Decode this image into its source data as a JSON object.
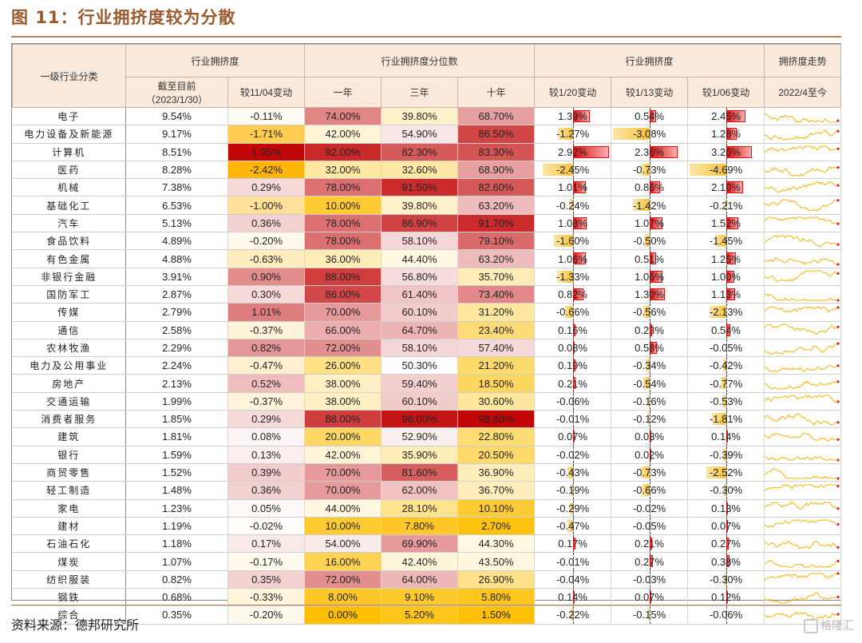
{
  "title": "图 11：行业拥挤度较为分散",
  "source": "资料来源：德邦研究所",
  "watermark": "格隆汇",
  "headers": {
    "col_category": "一级行业分类",
    "group_crowding": "行业拥挤度",
    "group_percentile": "行业拥挤度分位数",
    "group_change": "行业拥挤度",
    "group_trend": "拥挤度走势",
    "sub_asof": "截至目前",
    "sub_asof_date": "（2023/1/30）",
    "sub_vs1104": "较11/04变动",
    "sub_1y": "一年",
    "sub_3y": "三年",
    "sub_10y": "十年",
    "sub_vs120": "较1/20变动",
    "sub_vs113": "较1/13变动",
    "sub_vs106": "较1/06变动",
    "sub_trend": "2022/4至今"
  },
  "colors": {
    "title": "#9b5a2e",
    "header_bg": "#fbe9dc",
    "bar_pos": "#e21212",
    "bar_neg": "#f6c23a",
    "spark": "#f4b400",
    "spark_end": "#e02020"
  },
  "rows": [
    {
      "name": "电子",
      "cur": "9.54%",
      "v1104": "-0.11%",
      "y1": "74.00%",
      "y3": "39.80%",
      "y10": "68.70%",
      "c120": "1.39%",
      "c113": "0.54%",
      "c106": "2.45%"
    },
    {
      "name": "电力设备及新能源",
      "cur": "9.17%",
      "v1104": "-1.71%",
      "y1": "42.00%",
      "y3": "54.90%",
      "y10": "86.50%",
      "c120": "-1.27%",
      "c113": "-3.08%",
      "c106": "1.28%"
    },
    {
      "name": "计算机",
      "cur": "8.51%",
      "v1104": "1.95%",
      "y1": "92.00%",
      "y3": "82.30%",
      "y10": "83.30%",
      "c120": "2.92%",
      "c113": "2.36%",
      "c106": "3.26%"
    },
    {
      "name": "医药",
      "cur": "8.28%",
      "v1104": "-2.42%",
      "y1": "32.00%",
      "y3": "32.60%",
      "y10": "68.90%",
      "c120": "-2.45%",
      "c113": "-0.73%",
      "c106": "-4.69%"
    },
    {
      "name": "机械",
      "cur": "7.38%",
      "v1104": "0.29%",
      "y1": "78.00%",
      "y3": "91.50%",
      "y10": "82.60%",
      "c120": "1.01%",
      "c113": "0.86%",
      "c106": "2.10%"
    },
    {
      "name": "基础化工",
      "cur": "6.53%",
      "v1104": "-1.00%",
      "y1": "10.00%",
      "y3": "39.80%",
      "y10": "63.20%",
      "c120": "-0.24%",
      "c113": "-1.42%",
      "c106": "-0.21%"
    },
    {
      "name": "汽车",
      "cur": "5.13%",
      "v1104": "0.36%",
      "y1": "78.00%",
      "y3": "86.90%",
      "y10": "91.70%",
      "c120": "1.08%",
      "c113": "1.07%",
      "c106": "1.52%"
    },
    {
      "name": "食品饮料",
      "cur": "4.89%",
      "v1104": "-0.20%",
      "y1": "78.00%",
      "y3": "58.10%",
      "y10": "79.10%",
      "c120": "-1.60%",
      "c113": "-0.50%",
      "c106": "-1.45%"
    },
    {
      "name": "有色金属",
      "cur": "4.88%",
      "v1104": "-0.63%",
      "y1": "36.00%",
      "y3": "44.40%",
      "y10": "63.20%",
      "c120": "1.06%",
      "c113": "0.51%",
      "c106": "1.25%"
    },
    {
      "name": "非银行金融",
      "cur": "3.91%",
      "v1104": "0.90%",
      "y1": "88.00%",
      "y3": "56.80%",
      "y10": "35.70%",
      "c120": "-1.33%",
      "c113": "1.06%",
      "c106": "1.00%"
    },
    {
      "name": "国防军工",
      "cur": "2.87%",
      "v1104": "0.30%",
      "y1": "86.00%",
      "y3": "61.40%",
      "y10": "73.40%",
      "c120": "0.82%",
      "c113": "1.30%",
      "c106": "1.13%"
    },
    {
      "name": "传媒",
      "cur": "2.79%",
      "v1104": "1.01%",
      "y1": "70.00%",
      "y3": "60.10%",
      "y10": "31.20%",
      "c120": "-0.66%",
      "c113": "-0.56%",
      "c106": "-2.13%"
    },
    {
      "name": "通信",
      "cur": "2.58%",
      "v1104": "-0.37%",
      "y1": "66.00%",
      "y3": "64.70%",
      "y10": "23.40%",
      "c120": "0.16%",
      "c113": "0.23%",
      "c106": "0.54%"
    },
    {
      "name": "农林牧渔",
      "cur": "2.29%",
      "v1104": "0.82%",
      "y1": "72.00%",
      "y3": "58.10%",
      "y10": "57.40%",
      "c120": "0.08%",
      "c113": "0.58%",
      "c106": "-0.05%"
    },
    {
      "name": "电力及公用事业",
      "cur": "2.24%",
      "v1104": "-0.47%",
      "y1": "26.00%",
      "y3": "50.30%",
      "y10": "21.20%",
      "c120": "0.19%",
      "c113": "-0.34%",
      "c106": "-0.42%"
    },
    {
      "name": "房地产",
      "cur": "2.13%",
      "v1104": "0.52%",
      "y1": "38.00%",
      "y3": "59.40%",
      "y10": "18.50%",
      "c120": "0.21%",
      "c113": "-0.54%",
      "c106": "-0.77%"
    },
    {
      "name": "交通运输",
      "cur": "1.99%",
      "v1104": "-0.37%",
      "y1": "38.00%",
      "y3": "60.10%",
      "y10": "30.60%",
      "c120": "-0.06%",
      "c113": "-0.16%",
      "c106": "-0.53%"
    },
    {
      "name": "消费者服务",
      "cur": "1.85%",
      "v1104": "0.29%",
      "y1": "88.00%",
      "y3": "96.00%",
      "y10": "98.80%",
      "c120": "-0.01%",
      "c113": "-0.12%",
      "c106": "-1.81%"
    },
    {
      "name": "建筑",
      "cur": "1.81%",
      "v1104": "0.08%",
      "y1": "20.00%",
      "y3": "52.90%",
      "y10": "22.80%",
      "c120": "0.07%",
      "c113": "0.03%",
      "c106": "0.14%"
    },
    {
      "name": "银行",
      "cur": "1.59%",
      "v1104": "0.13%",
      "y1": "42.00%",
      "y3": "35.90%",
      "y10": "20.50%",
      "c120": "-0.02%",
      "c113": "0.02%",
      "c106": "-0.39%"
    },
    {
      "name": "商贸零售",
      "cur": "1.52%",
      "v1104": "0.39%",
      "y1": "70.00%",
      "y3": "81.60%",
      "y10": "36.90%",
      "c120": "-0.43%",
      "c113": "-0.73%",
      "c106": "-2.52%"
    },
    {
      "name": "轻工制造",
      "cur": "1.48%",
      "v1104": "0.36%",
      "y1": "70.00%",
      "y3": "62.00%",
      "y10": "36.70%",
      "c120": "-0.19%",
      "c113": "-0.66%",
      "c106": "-0.30%"
    },
    {
      "name": "家电",
      "cur": "1.23%",
      "v1104": "0.05%",
      "y1": "44.00%",
      "y3": "28.10%",
      "y10": "10.10%",
      "c120": "-0.29%",
      "c113": "-0.02%",
      "c106": "0.13%"
    },
    {
      "name": "建材",
      "cur": "1.19%",
      "v1104": "-0.02%",
      "y1": "10.00%",
      "y3": "7.80%",
      "y10": "2.70%",
      "c120": "-0.47%",
      "c113": "-0.05%",
      "c106": "0.07%"
    },
    {
      "name": "石油石化",
      "cur": "1.18%",
      "v1104": "0.17%",
      "y1": "54.00%",
      "y3": "69.90%",
      "y10": "44.30%",
      "c120": "0.17%",
      "c113": "0.21%",
      "c106": "0.27%"
    },
    {
      "name": "煤炭",
      "cur": "1.07%",
      "v1104": "-0.17%",
      "y1": "16.00%",
      "y3": "42.40%",
      "y10": "43.50%",
      "c120": "-0.01%",
      "c113": "0.27%",
      "c106": "0.38%"
    },
    {
      "name": "纺织服装",
      "cur": "0.82%",
      "v1104": "0.35%",
      "y1": "72.00%",
      "y3": "64.00%",
      "y10": "26.90%",
      "c120": "-0.04%",
      "c113": "-0.03%",
      "c106": "-0.30%"
    },
    {
      "name": "钢铁",
      "cur": "0.68%",
      "v1104": "-0.33%",
      "y1": "8.00%",
      "y3": "9.10%",
      "y10": "5.80%",
      "c120": "0.14%",
      "c113": "0.07%",
      "c106": "0.12%"
    },
    {
      "name": "综合",
      "cur": "0.35%",
      "v1104": "-0.20%",
      "y1": "0.00%",
      "y3": "5.20%",
      "y10": "1.50%",
      "c120": "-0.22%",
      "c113": "-0.15%",
      "c106": "-0.06%"
    }
  ]
}
